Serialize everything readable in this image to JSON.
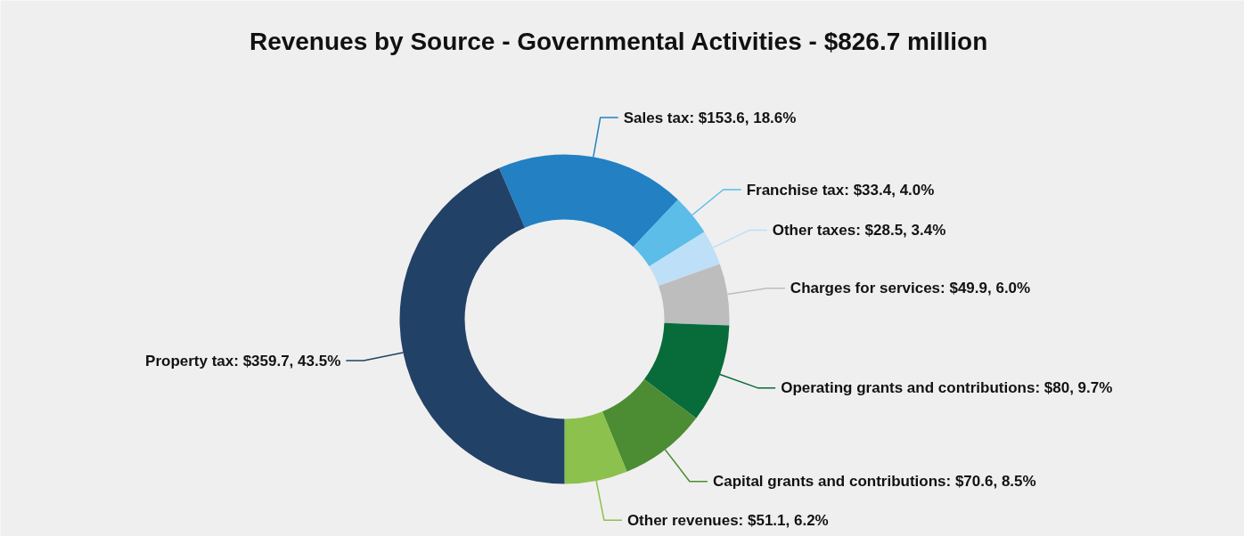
{
  "chart_data": {
    "type": "donut",
    "title": "Revenues by Source - Governmental Activities  - $826.7 million",
    "categories": [
      "Sales tax",
      "Franchise tax",
      "Other taxes",
      "Charges for services",
      "Operating grants and contributions",
      "Capital grants and contributions",
      "Other revenues",
      "Property tax"
    ],
    "values": [
      153.6,
      33.4,
      28.5,
      49.9,
      80,
      70.6,
      51.1,
      359.7
    ],
    "colors": [
      "#2280c3",
      "#5bbde8",
      "#bddff7",
      "#bdbdbd",
      "#086b3a",
      "#4c8c33",
      "#8bc14c",
      "#224166"
    ],
    "value_labels": [
      "$153.6, 18.6%",
      "$33.4, 4.0%",
      "$28.5, 3.4%",
      "$49.9, 6.0%",
      "$80, 9.7%",
      "$70.6, 8.5%",
      "$51.1, 6.2%",
      "$359.7, 43.5%"
    ]
  }
}
